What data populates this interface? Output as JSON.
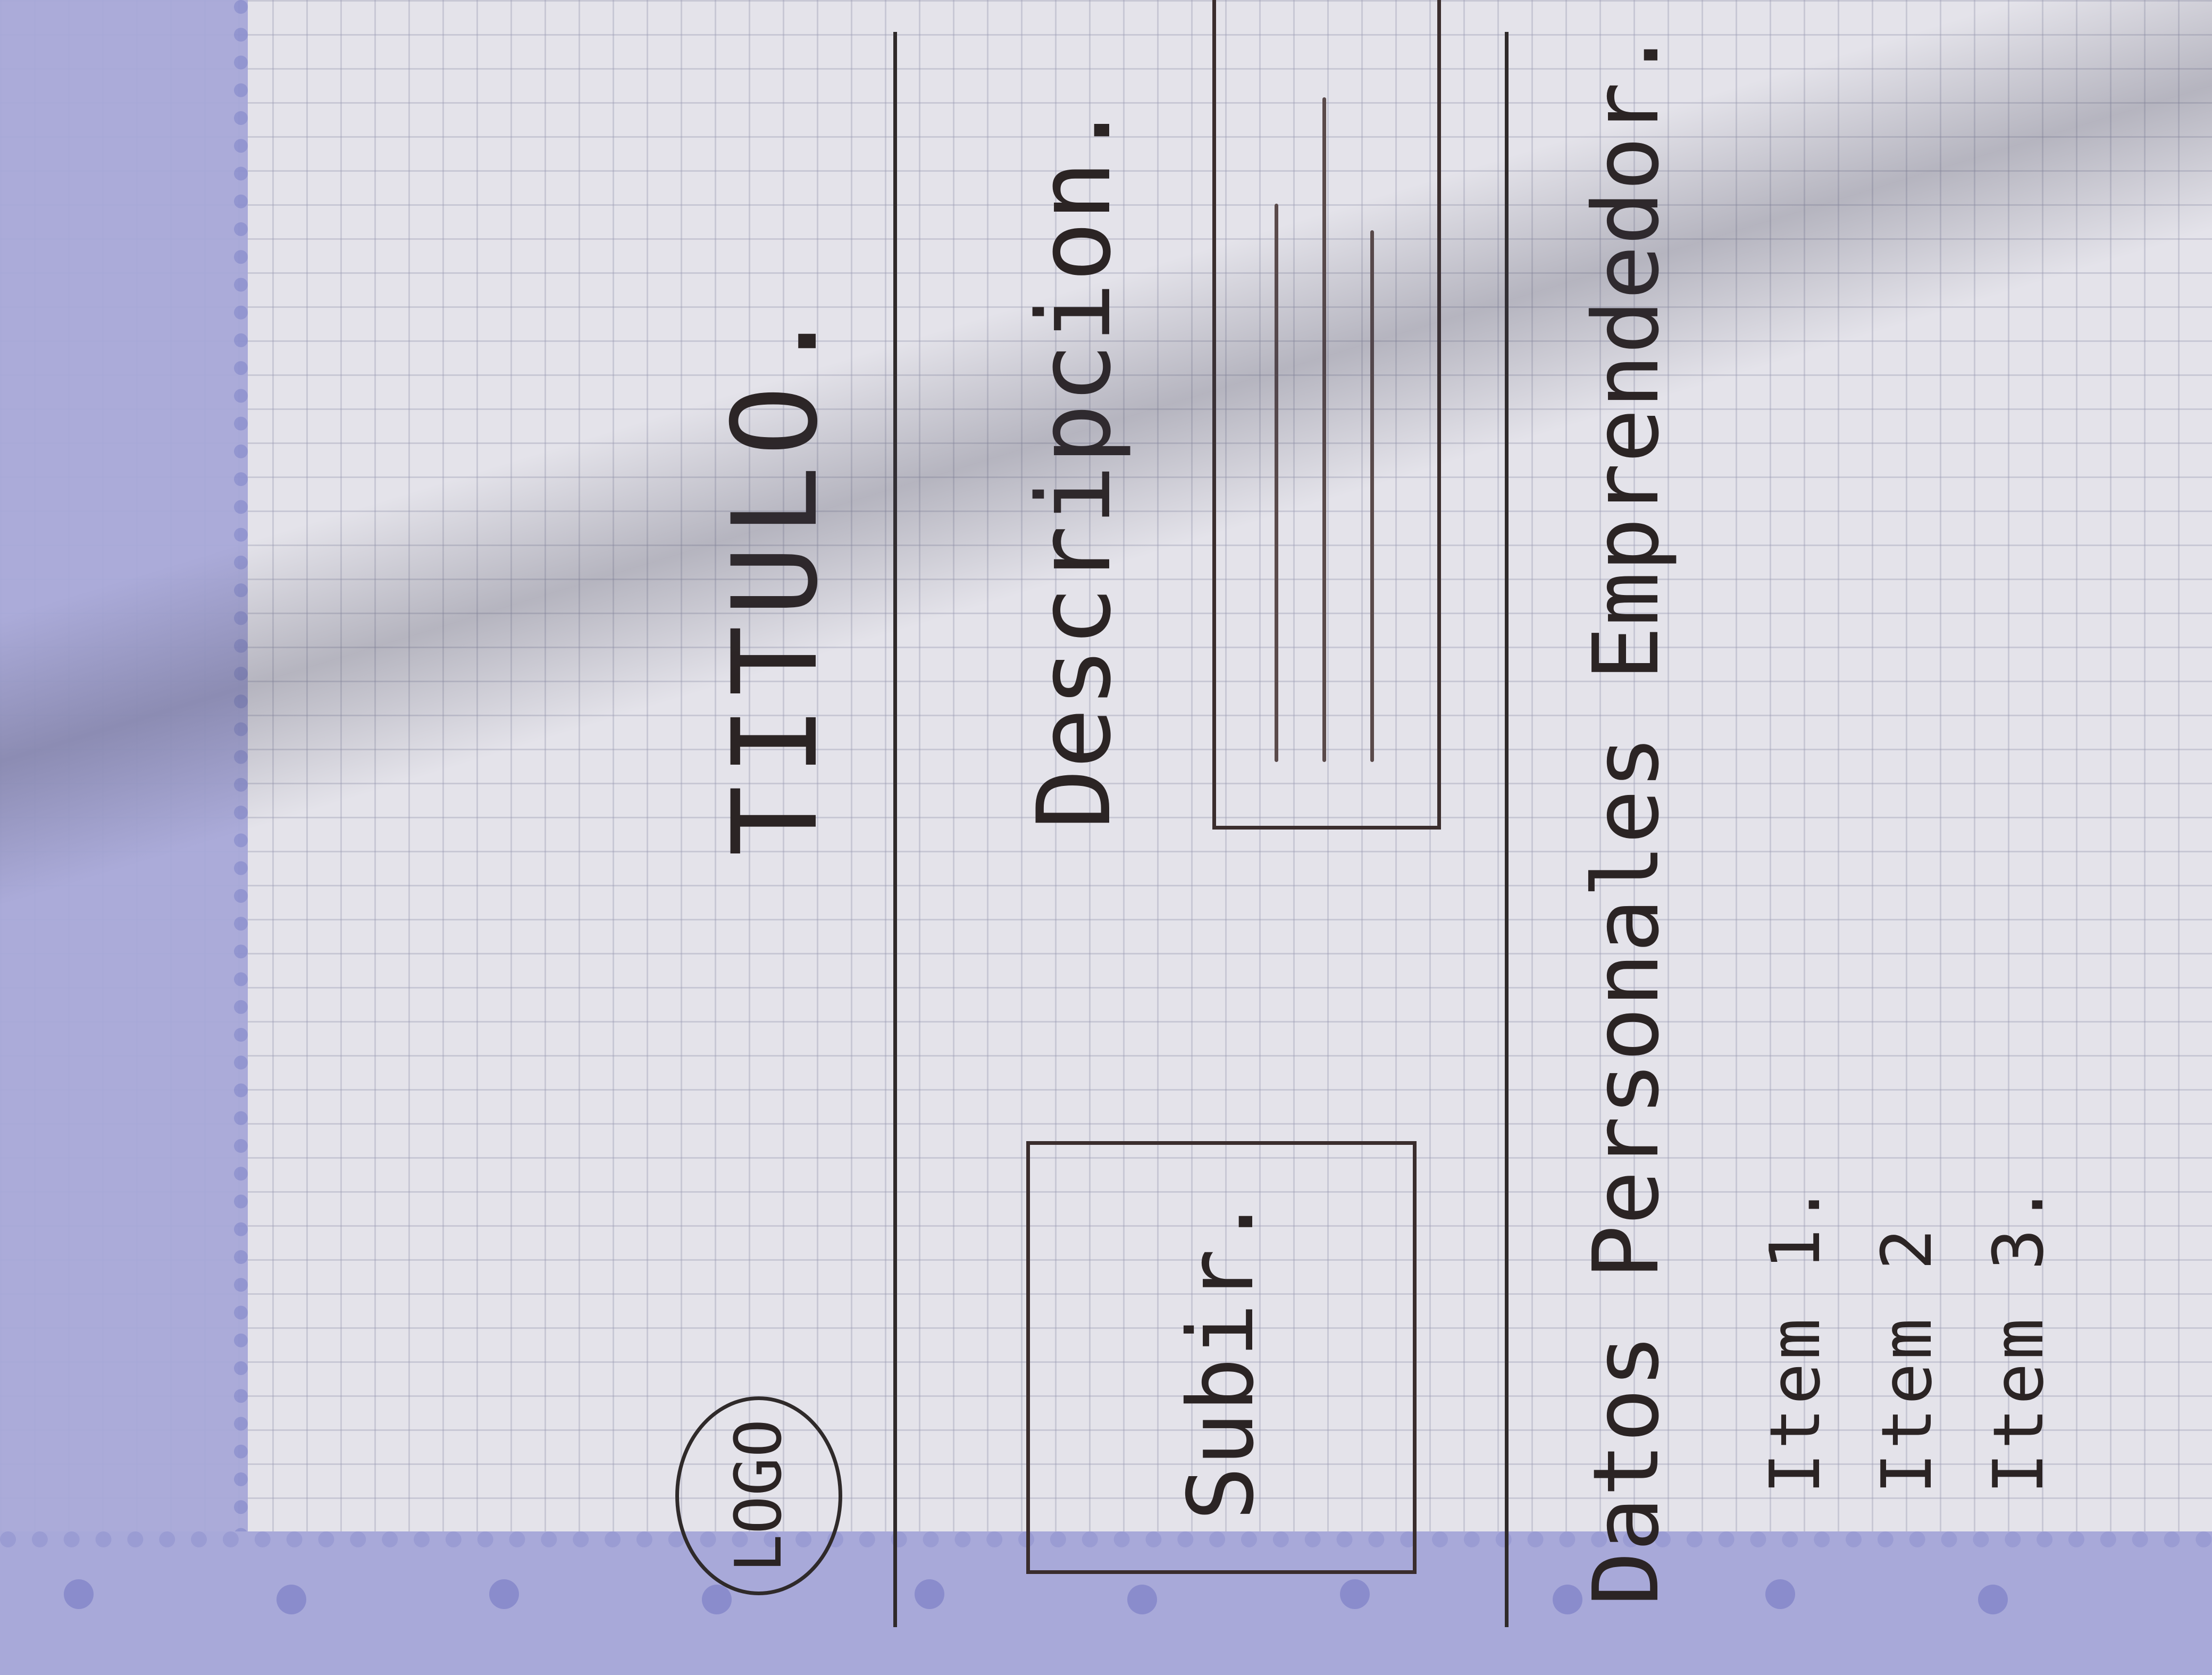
{
  "sketch": {
    "logo": "LOGO",
    "title": "TITULO.",
    "upload_button": "Subir.",
    "description_label": "Descripcion.",
    "section_title": "Datos Personales Emprendedor.",
    "items": [
      "Item 1.",
      "Item 2",
      "Item 3."
    ]
  },
  "colors": {
    "paper": "#e4e3ea",
    "ink": "#2b2424",
    "border_lilac": "#a8a9d9"
  }
}
